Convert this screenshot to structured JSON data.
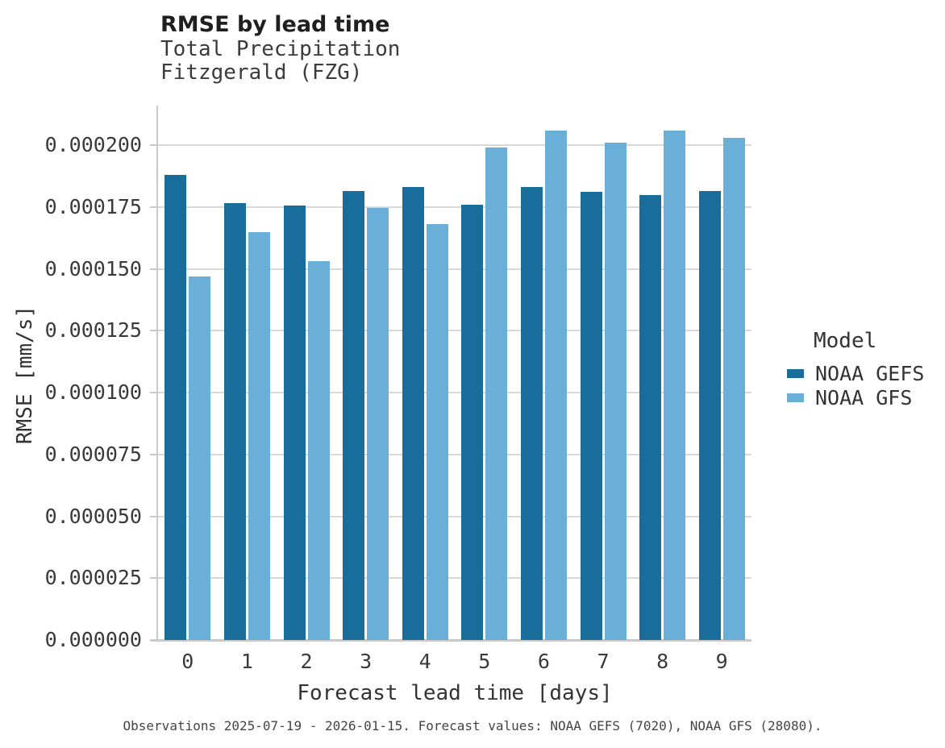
{
  "header": {
    "title": "RMSE by lead time",
    "subtitle_line1": "Total Precipitation",
    "subtitle_line2": "Fitzgerald (FZG)"
  },
  "legend": {
    "title": "Model"
  },
  "caption": "Observations 2025-07-19 - 2026-01-15. Forecast values: NOAA GEFS (7020), NOAA GFS (28080).",
  "chart_data": {
    "type": "bar",
    "title": "RMSE by lead time",
    "subtitle": [
      "Total Precipitation",
      "Fitzgerald (FZG)"
    ],
    "xlabel": "Forecast lead time [days]",
    "ylabel": "RMSE [mm/s]",
    "categories": [
      "0",
      "1",
      "2",
      "3",
      "4",
      "5",
      "6",
      "7",
      "8",
      "9"
    ],
    "series": [
      {
        "name": "NOAA GEFS",
        "color": "#186d9b",
        "values": [
          0.000188,
          0.0001765,
          0.0001755,
          0.0001815,
          0.000183,
          0.000176,
          0.000183,
          0.000181,
          0.00018,
          0.0001815
        ]
      },
      {
        "name": "NOAA GFS",
        "color": "#69afd8",
        "values": [
          0.000147,
          0.000165,
          0.000153,
          0.0001745,
          0.000168,
          0.000199,
          0.000206,
          0.000201,
          0.000206,
          0.000203
        ]
      }
    ],
    "ylim": [
      0,
      0.000216
    ],
    "yticks": [
      0,
      2.5e-05,
      5e-05,
      7.5e-05,
      0.0001,
      0.000125,
      0.00015,
      0.000175,
      0.0002
    ],
    "ytick_labels": [
      "0.000000",
      "0.000025",
      "0.000050",
      "0.000075",
      "0.000100",
      "0.000125",
      "0.000150",
      "0.000175",
      "0.000200"
    ],
    "grid": "horizontal",
    "legend_position": "right",
    "legend_title": "Model"
  }
}
